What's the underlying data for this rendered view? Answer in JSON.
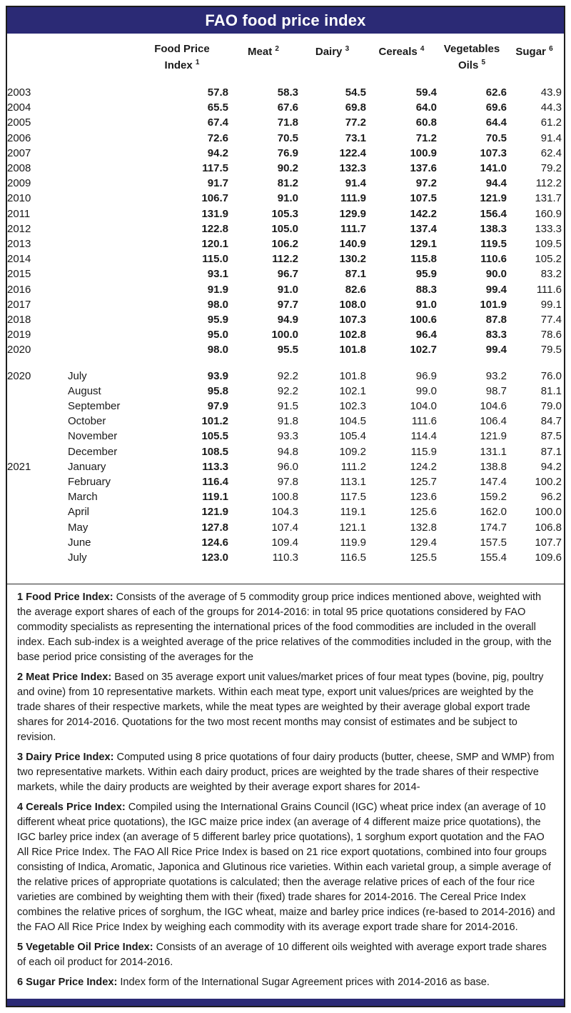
{
  "title": "FAO food price index",
  "colors": {
    "header_bar": "#2b2a75",
    "bottom_bar": "#2b2a75",
    "border": "#1c1c1c",
    "text": "#1a1a1a",
    "title_text": "#ffffff"
  },
  "table": {
    "columns": [
      {
        "name": "food-price-index",
        "lines": [
          "Food Price",
          "Index"
        ],
        "sup": "1"
      },
      {
        "name": "meat",
        "lines": [
          "Meat"
        ],
        "sup": "2"
      },
      {
        "name": "dairy",
        "lines": [
          "Dairy"
        ],
        "sup": "3"
      },
      {
        "name": "cereals",
        "lines": [
          "Cereals"
        ],
        "sup": "4"
      },
      {
        "name": "vegetables-oils",
        "lines": [
          "Vegetables",
          "Oils"
        ],
        "sup": "5"
      },
      {
        "name": "sugar",
        "lines": [
          "Sugar"
        ],
        "sup": "6"
      }
    ],
    "yearly_rows": [
      {
        "year": "2003",
        "values": [
          "57.8",
          "58.3",
          "54.5",
          "59.4",
          "62.6",
          "43.9"
        ]
      },
      {
        "year": "2004",
        "values": [
          "65.5",
          "67.6",
          "69.8",
          "64.0",
          "69.6",
          "44.3"
        ]
      },
      {
        "year": "2005",
        "values": [
          "67.4",
          "71.8",
          "77.2",
          "60.8",
          "64.4",
          "61.2"
        ]
      },
      {
        "year": "2006",
        "values": [
          "72.6",
          "70.5",
          "73.1",
          "71.2",
          "70.5",
          "91.4"
        ]
      },
      {
        "year": "2007",
        "values": [
          "94.2",
          "76.9",
          "122.4",
          "100.9",
          "107.3",
          "62.4"
        ]
      },
      {
        "year": "2008",
        "values": [
          "117.5",
          "90.2",
          "132.3",
          "137.6",
          "141.0",
          "79.2"
        ]
      },
      {
        "year": "2009",
        "values": [
          "91.7",
          "81.2",
          "91.4",
          "97.2",
          "94.4",
          "112.2"
        ]
      },
      {
        "year": "2010",
        "values": [
          "106.7",
          "91.0",
          "111.9",
          "107.5",
          "121.9",
          "131.7"
        ]
      },
      {
        "year": "2011",
        "values": [
          "131.9",
          "105.3",
          "129.9",
          "142.2",
          "156.4",
          "160.9"
        ]
      },
      {
        "year": "2012",
        "values": [
          "122.8",
          "105.0",
          "111.7",
          "137.4",
          "138.3",
          "133.3"
        ]
      },
      {
        "year": "2013",
        "values": [
          "120.1",
          "106.2",
          "140.9",
          "129.1",
          "119.5",
          "109.5"
        ]
      },
      {
        "year": "2014",
        "values": [
          "115.0",
          "112.2",
          "130.2",
          "115.8",
          "110.6",
          "105.2"
        ]
      },
      {
        "year": "2015",
        "values": [
          "93.1",
          "96.7",
          "87.1",
          "95.9",
          "90.0",
          "83.2"
        ]
      },
      {
        "year": "2016",
        "values": [
          "91.9",
          "91.0",
          "82.6",
          "88.3",
          "99.4",
          "111.6"
        ]
      },
      {
        "year": "2017",
        "values": [
          "98.0",
          "97.7",
          "108.0",
          "91.0",
          "101.9",
          "99.1"
        ]
      },
      {
        "year": "2018",
        "values": [
          "95.9",
          "94.9",
          "107.3",
          "100.6",
          "87.8",
          "77.4"
        ]
      },
      {
        "year": "2019",
        "values": [
          "95.0",
          "100.0",
          "102.8",
          "96.4",
          "83.3",
          "78.6"
        ]
      },
      {
        "year": "2020",
        "values": [
          "98.0",
          "95.5",
          "101.8",
          "102.7",
          "99.4",
          "79.5"
        ]
      }
    ],
    "monthly_rows": [
      {
        "year": "2020",
        "month": "July",
        "values": [
          "93.9",
          "92.2",
          "101.8",
          "96.9",
          "93.2",
          "76.0"
        ]
      },
      {
        "year": "",
        "month": "August",
        "values": [
          "95.8",
          "92.2",
          "102.1",
          "99.0",
          "98.7",
          "81.1"
        ]
      },
      {
        "year": "",
        "month": "September",
        "values": [
          "97.9",
          "91.5",
          "102.3",
          "104.0",
          "104.6",
          "79.0"
        ]
      },
      {
        "year": "",
        "month": "October",
        "values": [
          "101.2",
          "91.8",
          "104.5",
          "111.6",
          "106.4",
          "84.7"
        ]
      },
      {
        "year": "",
        "month": "November",
        "values": [
          "105.5",
          "93.3",
          "105.4",
          "114.4",
          "121.9",
          "87.5"
        ]
      },
      {
        "year": "",
        "month": "December",
        "values": [
          "108.5",
          "94.8",
          "109.2",
          "115.9",
          "131.1",
          "87.1"
        ]
      },
      {
        "year": "2021",
        "month": "January",
        "values": [
          "113.3",
          "96.0",
          "111.2",
          "124.2",
          "138.8",
          "94.2"
        ]
      },
      {
        "year": "",
        "month": "February",
        "values": [
          "116.4",
          "97.8",
          "113.1",
          "125.7",
          "147.4",
          "100.2"
        ]
      },
      {
        "year": "",
        "month": "March",
        "values": [
          "119.1",
          "100.8",
          "117.5",
          "123.6",
          "159.2",
          "96.2"
        ]
      },
      {
        "year": "",
        "month": "April",
        "values": [
          "121.9",
          "104.3",
          "119.1",
          "125.6",
          "162.0",
          "100.0"
        ]
      },
      {
        "year": "",
        "month": "May",
        "values": [
          "127.8",
          "107.4",
          "121.1",
          "132.8",
          "174.7",
          "106.8"
        ]
      },
      {
        "year": "",
        "month": "June",
        "values": [
          "124.6",
          "109.4",
          "119.9",
          "129.4",
          "157.5",
          "107.7"
        ]
      },
      {
        "year": "",
        "month": "July",
        "values": [
          "123.0",
          "110.3",
          "116.5",
          "125.5",
          "155.4",
          "109.6"
        ]
      }
    ]
  },
  "footnotes": [
    {
      "label": "1 Food Price Index:",
      "text": "Consists of the average of 5 commodity group price indices mentioned above, weighted with the average export shares of each of the groups for 2014-2016: in total 95 price quotations considered by FAO commodity specialists as representing the international prices of the food commodities are included in the overall index. Each sub-index is a weighted average of the price relatives of the commodities included in the group, with the base period price consisting of the averages for the"
    },
    {
      "label": "2 Meat Price Index:",
      "text": "Based on 35 average export unit values/market prices of four meat types (bovine, pig, poultry and ovine) from 10 representative markets. Within each meat type, export unit values/prices are weighted by the trade shares of their respective markets, while the meat types are weighted by their average global export trade shares for 2014-2016. Quotations for the two most recent months may consist of estimates and be subject to revision."
    },
    {
      "label": "3 Dairy Price Index:",
      "text": "Computed using 8 price quotations of four dairy products (butter, cheese, SMP and WMP) from two representative markets. Within each dairy product, prices are weighted by the trade shares of their respective markets, while the dairy products are weighted by their average export shares for 2014-"
    },
    {
      "label": "4 Cereals Price Index:",
      "text": "Compiled using the International Grains Council (IGC) wheat price index (an average of 10 different wheat price quotations), the IGC maize price index (an average of 4 different maize price quotations), the IGC barley price index (an average of 5 different barley price quotations), 1 sorghum export quotation and the FAO All Rice Price Index. The FAO All Rice Price Index is based on 21 rice export quotations, combined into four groups consisting of Indica, Aromatic, Japonica and Glutinous rice varieties. Within each varietal group, a simple average of the relative prices of appropriate quotations is calculated; then the average relative prices of each of the four rice varieties are combined by weighting them with their (fixed) trade shares for 2014-2016. The Cereal Price Index combines the relative prices of sorghum, the IGC wheat, maize and barley price indices (re-based to 2014-2016) and the FAO All Rice Price Index by weighing each commodity with its average export trade share for 2014-2016."
    },
    {
      "label": "5 Vegetable Oil Price Index:",
      "text": "Consists of an average of 10 different oils weighted with average export trade shares of each oil product for 2014-2016."
    },
    {
      "label": "6 Sugar Price Index:",
      "text": "Index form of the International Sugar Agreement prices with 2014-2016 as base."
    }
  ]
}
